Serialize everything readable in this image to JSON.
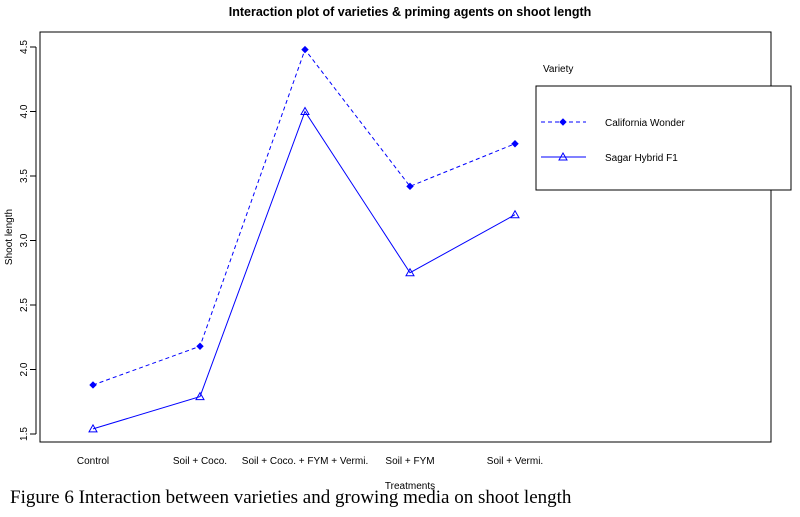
{
  "chart_data": {
    "type": "line",
    "title": "Interaction plot of varieties & priming agents on shoot length",
    "xlabel": "Treatments",
    "ylabel": "Shoot length",
    "categories": [
      "Control",
      "Soil + Coco.",
      "Soil + Coco. + FYM + Vermi.",
      "Soil + FYM",
      "Soil + Vermi."
    ],
    "ylim": [
      1.5,
      4.5
    ],
    "yticks": [
      "1.5",
      "2.0",
      "2.5",
      "3.0",
      "3.5",
      "4.0",
      "4.5"
    ],
    "legend": {
      "title": "Variety",
      "placement": "top-right"
    },
    "series": [
      {
        "name": "California Wonder",
        "values": [
          1.88,
          2.18,
          4.48,
          3.42,
          3.75
        ],
        "color": "#0000ff",
        "line_style": "dashed",
        "marker": "filled-diamond"
      },
      {
        "name": "Sagar Hybrid F1",
        "values": [
          1.54,
          1.79,
          4.0,
          2.75,
          3.2
        ],
        "color": "#0000ff",
        "line_style": "solid",
        "marker": "open-triangle"
      }
    ]
  },
  "caption": "Figure 6 Interaction between varieties and growing media on shoot length"
}
